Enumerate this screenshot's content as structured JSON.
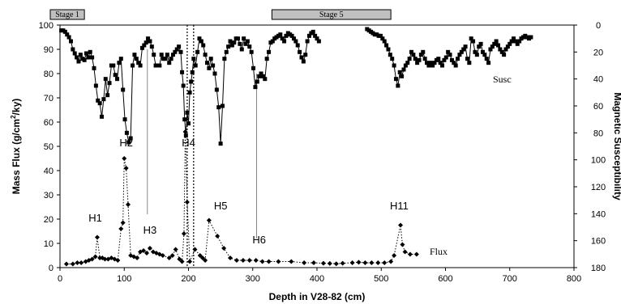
{
  "chart_data": {
    "type": "line",
    "xlabel": "Depth in V28-82 (cm)",
    "ylabel_left": "Mass Flux (g/cm²/ky)",
    "ylabel_left_main": "Mass Flux (g/cm",
    "ylabel_left_sup": "2",
    "ylabel_left_tail": "/ky)",
    "ylabel_right": "Magnetic Susceptibility",
    "xlim": [
      0,
      800
    ],
    "ylim_left": [
      0,
      100
    ],
    "ylim_right": [
      0,
      180
    ],
    "right_axis_inverted": true,
    "x_ticks": [
      "0",
      "100",
      "200",
      "300",
      "400",
      "500",
      "600",
      "700",
      "800"
    ],
    "y_left_ticks": [
      "0",
      "10",
      "20",
      "30",
      "40",
      "50",
      "60",
      "70",
      "80",
      "90",
      "100"
    ],
    "y_right_ticks": [
      "0",
      "20",
      "40",
      "60",
      "80",
      "100",
      "120",
      "140",
      "160",
      "180"
    ],
    "grid": false,
    "stages": [
      {
        "label": "Stage 1",
        "start": 0,
        "end": 38
      },
      {
        "label": "Stage 5",
        "start": 345,
        "end": 515
      }
    ],
    "event_labels": [
      {
        "label": "H1",
        "x": 55,
        "y": 19
      },
      {
        "label": "H2",
        "x": 103,
        "y": 50
      },
      {
        "label": "H3",
        "x": 140,
        "y": 14
      },
      {
        "label": "H4",
        "x": 200,
        "y": 50
      },
      {
        "label": "H5",
        "x": 250,
        "y": 24
      },
      {
        "label": "H6",
        "x": 310,
        "y": 10
      },
      {
        "label": "H11",
        "x": 528,
        "y": 24
      }
    ],
    "reference_lines": [
      {
        "x": 136,
        "from": 22,
        "to": 90
      },
      {
        "x": 306,
        "from": 12,
        "to": 80
      }
    ],
    "dotted_lines": [
      198,
      208
    ],
    "series": [
      {
        "name": "Flux",
        "axis": "left",
        "style": "dotted-diamond",
        "x": [
          10,
          20,
          27,
          33,
          40,
          45,
          50,
          55,
          58,
          62,
          66,
          70,
          75,
          80,
          85,
          90,
          95,
          98,
          100,
          103,
          106,
          110,
          115,
          120,
          125,
          130,
          135,
          140,
          145,
          150,
          155,
          160,
          170,
          175,
          180,
          186,
          190,
          193,
          195,
          198,
          202,
          210,
          218,
          222,
          226,
          232,
          245,
          255,
          265,
          275,
          285,
          295,
          305,
          315,
          325,
          340,
          360,
          380,
          395,
          410,
          420,
          430,
          440,
          455,
          465,
          475,
          485,
          495,
          505,
          515,
          520,
          530,
          533,
          537,
          545,
          555
        ],
        "values": [
          1.5,
          1.5,
          2.0,
          2.0,
          2.5,
          3.0,
          3.5,
          4.5,
          12.5,
          4.0,
          4.0,
          3.5,
          3.5,
          4.0,
          3.5,
          3.0,
          16.0,
          18.5,
          45.0,
          41.0,
          26.0,
          5.0,
          4.5,
          4.0,
          6.5,
          7.0,
          6.0,
          8.0,
          6.5,
          6.0,
          5.5,
          5.0,
          4.0,
          5.0,
          7.5,
          3.5,
          2.5,
          14.0,
          56.0,
          27.0,
          2.5,
          7.5,
          5.0,
          4.0,
          3.0,
          19.5,
          13.0,
          8.0,
          4.0,
          3.0,
          3.0,
          3.0,
          3.0,
          2.5,
          2.5,
          2.5,
          2.5,
          2.0,
          2.0,
          1.8,
          1.7,
          1.6,
          1.8,
          2.0,
          2.2,
          2.0,
          2.0,
          2.0,
          2.0,
          2.5,
          5.0,
          17.5,
          9.5,
          6.5,
          5.5,
          5.5
        ]
      },
      {
        "name": "Susc",
        "axis": "right",
        "style": "solid-square",
        "x": [
          2,
          5,
          8,
          11,
          14,
          17,
          20,
          23,
          26,
          29,
          32,
          35,
          38,
          41,
          44,
          47,
          50,
          53,
          56,
          59,
          62,
          65,
          68,
          71,
          74,
          77,
          80,
          83,
          86,
          89,
          92,
          95,
          98,
          101,
          104,
          107,
          110,
          113,
          116,
          119,
          122,
          125,
          128,
          131,
          134,
          137,
          140,
          143,
          146,
          149,
          152,
          155,
          158,
          161,
          164,
          167,
          170,
          173,
          176,
          179,
          182,
          185,
          188,
          190,
          192,
          194,
          196,
          198,
          200,
          202,
          204,
          206,
          208,
          211,
          214,
          217,
          220,
          223,
          226,
          229,
          232,
          235,
          238,
          241,
          244,
          247,
          250,
          253,
          256,
          259,
          262,
          265,
          268,
          271,
          274,
          277,
          280,
          283,
          286,
          289,
          292,
          295,
          298,
          301,
          304,
          307,
          310,
          313,
          316,
          319,
          322,
          325,
          328,
          331,
          334,
          337,
          340,
          343,
          346,
          349,
          352,
          355,
          358,
          361,
          364,
          367,
          370,
          373,
          376,
          379,
          382,
          385,
          388,
          391,
          394,
          397,
          400,
          403,
          478,
          481,
          484,
          487,
          490,
          493,
          496,
          499,
          502,
          505,
          508,
          511,
          514,
          517,
          520,
          523,
          526,
          529,
          532,
          535,
          538,
          541,
          544,
          547,
          550,
          553,
          556,
          559,
          562,
          565,
          568,
          571,
          574,
          577,
          580,
          583,
          586,
          589,
          592,
          595,
          598,
          601,
          604,
          607,
          610,
          613,
          616,
          619,
          622,
          625,
          628,
          631,
          634,
          637,
          640,
          643,
          646,
          649,
          652,
          655,
          658,
          661,
          664,
          667,
          670,
          673,
          676,
          679,
          682,
          685,
          688,
          691,
          694,
          697,
          700,
          703,
          706,
          709,
          712,
          715,
          718,
          721,
          724,
          727,
          730,
          733
        ],
        "values": [
          4,
          4,
          5,
          7,
          9,
          12,
          18,
          21,
          24,
          27,
          22,
          25,
          26,
          21,
          24,
          20,
          24,
          32,
          45,
          56,
          58,
          68,
          55,
          40,
          52,
          43,
          30,
          30,
          37,
          40,
          28,
          25,
          48,
          70,
          80,
          87,
          84,
          30,
          22,
          25,
          28,
          30,
          17,
          15,
          13,
          10,
          12,
          16,
          22,
          30,
          30,
          30,
          22,
          25,
          25,
          22,
          28,
          25,
          22,
          20,
          18,
          16,
          20,
          35,
          45,
          70,
          82,
          65,
          73,
          50,
          42,
          35,
          25,
          30,
          20,
          10,
          12,
          15,
          22,
          28,
          32,
          25,
          30,
          36,
          48,
          61,
          88,
          60,
          25,
          20,
          16,
          12,
          15,
          13,
          10,
          10,
          14,
          18,
          10,
          14,
          12,
          16,
          20,
          32,
          46,
          42,
          38,
          36,
          38,
          40,
          25,
          20,
          13,
          12,
          10,
          9,
          8,
          7,
          10,
          12,
          8,
          6,
          7,
          8,
          10,
          12,
          15,
          20,
          24,
          27,
          22,
          12,
          8,
          6,
          5,
          8,
          10,
          12,
          3,
          4,
          5,
          6,
          7,
          7,
          8,
          8,
          10,
          12,
          15,
          18,
          22,
          25,
          30,
          40,
          45,
          35,
          38,
          33,
          30,
          28,
          25,
          20,
          22,
          25,
          28,
          26,
          22,
          20,
          25,
          28,
          30,
          28,
          30,
          28,
          26,
          25,
          28,
          30,
          26,
          24,
          20,
          22,
          26,
          28,
          30,
          25,
          22,
          20,
          18,
          16,
          25,
          28,
          10,
          12,
          20,
          22,
          16,
          14,
          20,
          22,
          25,
          28,
          18,
          16,
          14,
          12,
          15,
          18,
          20,
          22,
          18,
          16,
          14,
          12,
          10,
          12,
          14,
          12,
          10,
          9,
          8,
          9,
          10,
          9
        ]
      }
    ]
  }
}
